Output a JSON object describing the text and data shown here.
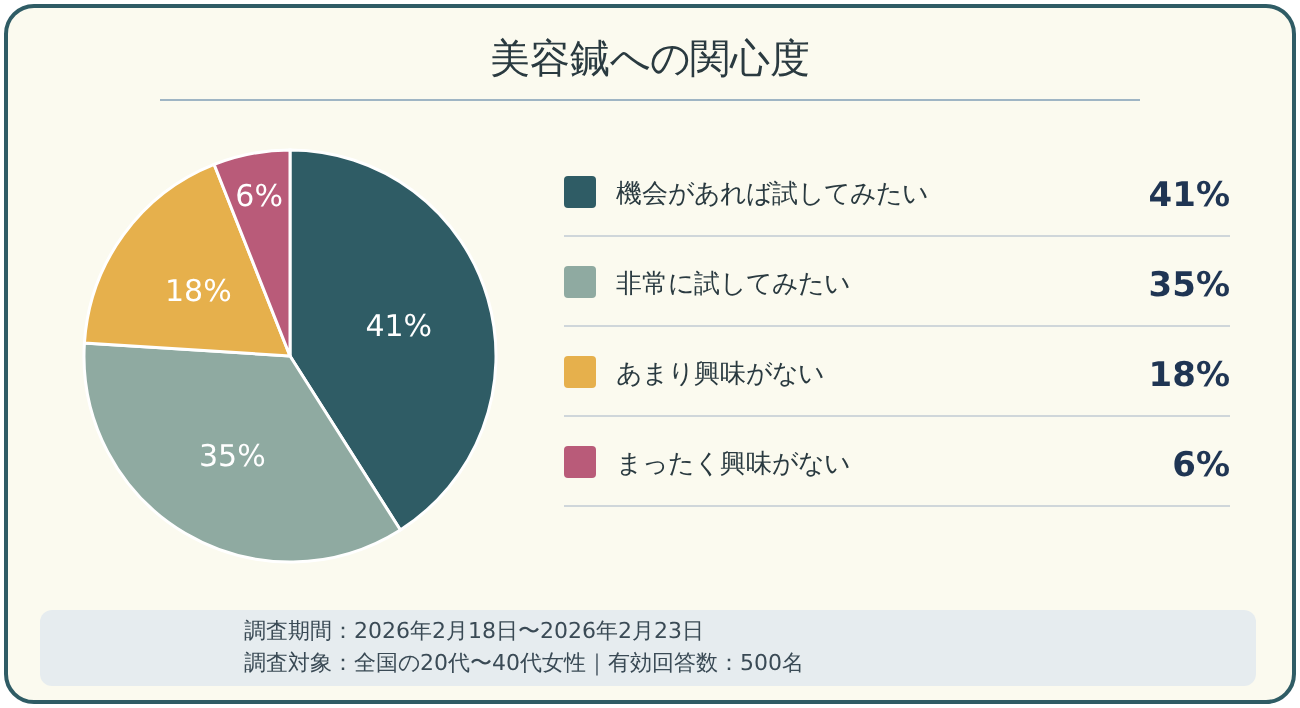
{
  "chart_data": {
    "type": "pie",
    "title": "美容鍼への関心度",
    "categories": [
      "機会があれば試してみたい",
      "非常に試してみたい",
      "あまり興味がない",
      "まったく興味がない"
    ],
    "values": [
      41,
      35,
      18,
      6
    ],
    "value_labels": [
      "41%",
      "35%",
      "18%",
      "6%"
    ],
    "colors": [
      "#2f5c65",
      "#8faaa1",
      "#e6b04c",
      "#b95b79"
    ],
    "legend": "right",
    "annotations": [
      "調査期間：2026年2月18日〜2026年2月23日",
      "調査対象：全国の20代〜40代女性｜有効回答数：500名"
    ]
  }
}
